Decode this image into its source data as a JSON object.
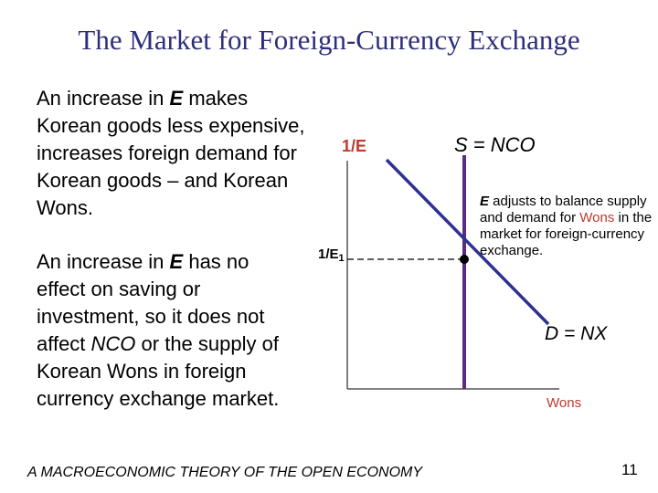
{
  "title": "The Market for Foreign-Currency Exchange",
  "paragraph_1": {
    "pre": "An increase in ",
    "var": "E",
    "post": " makes Korean goods less expensive, increases foreign demand for Korean goods – and Korean Wons."
  },
  "paragraph_2": {
    "pre": "An increase in ",
    "var": "E",
    "mid1": " has no effect on saving or investment, so it does not affect ",
    "var2": "NCO",
    "post": " or the supply of Korean Wons in foreign currency exchange market."
  },
  "diagram": {
    "y_axis_label_main": "1/",
    "y_axis_label_var": "E",
    "y_tick_main": "1/E",
    "y_tick_sub": "1",
    "x_axis_label": "Wons",
    "supply_label": "S = NCO",
    "demand_label": "D = NX",
    "note": {
      "var": "E",
      "part1": " adjusts to balance supply and demand for ",
      "red": "Wons",
      "part2": " in the market for foreign-currency exchange."
    },
    "colors": {
      "curve": "#2e3192",
      "supply": "#5b2c83",
      "axis": "#555555",
      "accent": "#c0392b"
    }
  },
  "footer": "A MACROECONOMIC THEORY OF THE OPEN ECONOMY",
  "page_number": "11"
}
